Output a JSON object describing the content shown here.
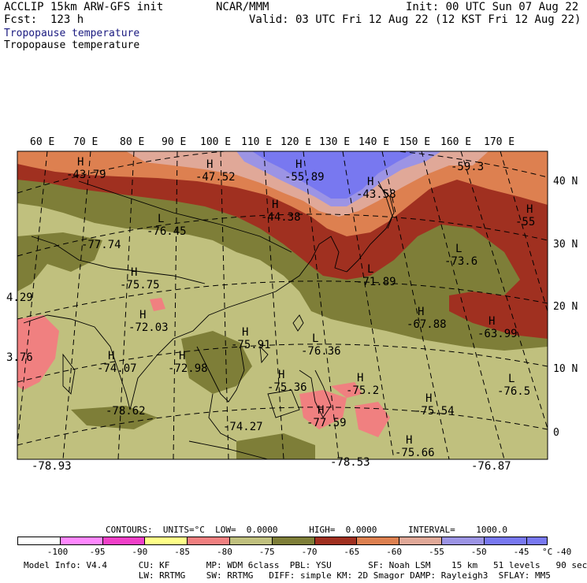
{
  "header": {
    "model": "ACCLIP 15km ARW-GFS init",
    "center": "NCAR/MMM",
    "init": "Init: 00 UTC Sun 07 Aug 22",
    "fcst": "Fcst:  123 h",
    "valid": "Valid: 03 UTC Fri 12 Aug 22 (12 KST Fri 12 Aug 22)",
    "field1": "Tropopause temperature",
    "field2": "Tropopause temperature"
  },
  "colors": {
    "ocean_band": "#c0c07e",
    "olive": "#7e7e38",
    "dark_red": "#a03020",
    "orange": "#dd8050",
    "pink_light": "#e0a898",
    "lavender": "#9c94e4",
    "blue": "#7878f0",
    "salmon": "#f08080"
  },
  "lon_labels": [
    "60 E",
    "70 E",
    "80 E",
    "90 E",
    "100 E",
    "110 E",
    "120 E",
    "130 E",
    "140 E",
    "150 E",
    "160 E",
    "170 E"
  ],
  "lat_labels": [
    "40 N",
    "30 N",
    "20 N",
    "10 N",
    "0"
  ],
  "extrema": [
    {
      "type": "H",
      "value": "-43.79"
    },
    {
      "type": "H",
      "value": "-47.52"
    },
    {
      "type": "H",
      "value": "-55.89"
    },
    {
      "type": "H",
      "value": "-43.58"
    },
    {
      "type": "",
      "value": "-59.3"
    },
    {
      "type": "H",
      "value": "-44.38"
    },
    {
      "type": "H",
      "value": "-55"
    },
    {
      "type": "L",
      "value": "-76.45"
    },
    {
      "type": "",
      "value": "-77.74"
    },
    {
      "type": "L",
      "value": "-73.6"
    },
    {
      "type": "H",
      "value": "-75.75"
    },
    {
      "type": "L",
      "value": "-71.89"
    },
    {
      "type": "",
      "value": "4.29"
    },
    {
      "type": "H",
      "value": "-67.88"
    },
    {
      "type": "H",
      "value": "-63.99"
    },
    {
      "type": "H",
      "value": "-72.03"
    },
    {
      "type": "H",
      "value": "-75.91"
    },
    {
      "type": "L",
      "value": "-76.36"
    },
    {
      "type": "",
      "value": "3.76"
    },
    {
      "type": "H",
      "value": "-74.07"
    },
    {
      "type": "H",
      "value": "-72.98"
    },
    {
      "type": "L",
      "value": "-76.5"
    },
    {
      "type": "H",
      "value": "-75.36"
    },
    {
      "type": "H",
      "value": "-75.2"
    },
    {
      "type": "",
      "value": "-78.62"
    },
    {
      "type": "H",
      "value": "-75.54"
    },
    {
      "type": "H",
      "value": "-77.59"
    },
    {
      "type": "",
      "value": "-74.27"
    },
    {
      "type": "H",
      "value": "-75.66"
    },
    {
      "type": "",
      "value": "-78.53"
    },
    {
      "type": "",
      "value": "-78.93"
    },
    {
      "type": "",
      "value": "-76.87"
    }
  ],
  "contours_line": "CONTOURS:  UNITS=°C  LOW=  0.0000      HIGH=  0.0000      INTERVAL=    1000.0",
  "colorbar": {
    "colors": [
      "#ffffff",
      "#ff88ff",
      "#f040c8",
      "#ffff88",
      "#f08080",
      "#c0c07e",
      "#7e7e38",
      "#a03020",
      "#dd8050",
      "#e0a898",
      "#9c94e4",
      "#7878f0",
      "#7878f0"
    ],
    "labels": [
      "-100",
      "-95",
      "-90",
      "-85",
      "-80",
      "-75",
      "-70",
      "-65",
      "-60",
      "-55",
      "-50",
      "-45",
      "-40",
      "°C"
    ]
  },
  "footer": {
    "line1": "Model Info: V4.4      CU: KF       MP: WDM 6class  PBL: YSU       SF: Noah LSM    15 km   51 levels   90 sec",
    "line2": "                      LW: RRTMG    SW: RRTMG   DIFF: simple KM: 2D Smagor DAMP: Rayleigh3  SFLAY: MM5"
  }
}
